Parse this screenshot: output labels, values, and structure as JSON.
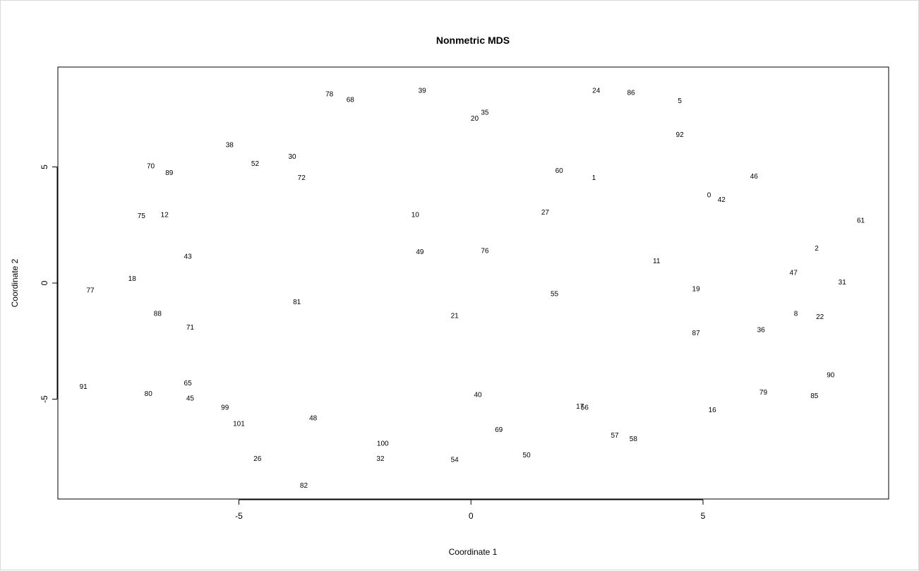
{
  "chart_data": {
    "type": "scatter",
    "title": "Nonmetric MDS",
    "xlabel": "Coordinate 1",
    "ylabel": "Coordinate 2",
    "xlim": [
      -8.9,
      9.0
    ],
    "ylim": [
      -9.3,
      9.3
    ],
    "x_ticks": [
      -5,
      0,
      5
    ],
    "y_ticks": [
      -5,
      0,
      5
    ],
    "x_tick_labels": [
      "-5",
      "0",
      "5"
    ],
    "y_tick_labels": [
      "-5",
      "0",
      "5"
    ],
    "grid": false,
    "points": [
      {
        "label": "0",
        "x": 5.13,
        "y": 3.8
      },
      {
        "label": "1",
        "x": 2.65,
        "y": 4.55
      },
      {
        "label": "2",
        "x": 7.45,
        "y": 1.5
      },
      {
        "label": "5",
        "x": 4.5,
        "y": 7.85
      },
      {
        "label": "8",
        "x": 7.0,
        "y": -1.3
      },
      {
        "label": "10",
        "x": -1.2,
        "y": 2.95
      },
      {
        "label": "11",
        "x": 4.0,
        "y": 0.95
      },
      {
        "label": "12",
        "x": -6.6,
        "y": 2.95
      },
      {
        "label": "16",
        "x": 5.2,
        "y": -5.45
      },
      {
        "label": "17",
        "x": 2.35,
        "y": -5.3
      },
      {
        "label": "18",
        "x": -7.3,
        "y": 0.2
      },
      {
        "label": "19",
        "x": 4.85,
        "y": -0.25
      },
      {
        "label": "20",
        "x": 0.08,
        "y": 7.1
      },
      {
        "label": "21",
        "x": -0.35,
        "y": -1.4
      },
      {
        "label": "22",
        "x": 7.52,
        "y": -1.45
      },
      {
        "label": "24",
        "x": 2.7,
        "y": 8.3
      },
      {
        "label": "26",
        "x": -4.6,
        "y": -7.55
      },
      {
        "label": "27",
        "x": 1.6,
        "y": 3.05
      },
      {
        "label": "30",
        "x": -3.85,
        "y": 5.45
      },
      {
        "label": "31",
        "x": 8.0,
        "y": 0.05
      },
      {
        "label": "32",
        "x": -1.95,
        "y": -7.55
      },
      {
        "label": "35",
        "x": 0.3,
        "y": 7.35
      },
      {
        "label": "36",
        "x": 6.25,
        "y": -2.0
      },
      {
        "label": "38",
        "x": -5.2,
        "y": 5.95
      },
      {
        "label": "39",
        "x": -1.05,
        "y": 8.3
      },
      {
        "label": "40",
        "x": 0.15,
        "y": -4.8
      },
      {
        "label": "42",
        "x": 5.4,
        "y": 3.6
      },
      {
        "label": "43",
        "x": -6.1,
        "y": 1.15
      },
      {
        "label": "45",
        "x": -6.05,
        "y": -4.95
      },
      {
        "label": "46",
        "x": 6.1,
        "y": 4.6
      },
      {
        "label": "47",
        "x": 6.95,
        "y": 0.45
      },
      {
        "label": "48",
        "x": -3.4,
        "y": -5.8
      },
      {
        "label": "49",
        "x": -1.1,
        "y": 1.35
      },
      {
        "label": "50",
        "x": 1.2,
        "y": -7.4
      },
      {
        "label": "52",
        "x": -4.65,
        "y": 5.15
      },
      {
        "label": "54",
        "x": -0.35,
        "y": -7.6
      },
      {
        "label": "55",
        "x": 1.8,
        "y": -0.45
      },
      {
        "label": "56",
        "x": 2.45,
        "y": -5.35
      },
      {
        "label": "57",
        "x": 3.1,
        "y": -6.55
      },
      {
        "label": "58",
        "x": 3.5,
        "y": -6.7
      },
      {
        "label": "60",
        "x": 1.9,
        "y": 4.85
      },
      {
        "label": "61",
        "x": 8.4,
        "y": 2.7
      },
      {
        "label": "65",
        "x": -6.1,
        "y": -4.3
      },
      {
        "label": "68",
        "x": -2.6,
        "y": 7.9
      },
      {
        "label": "69",
        "x": 0.6,
        "y": -6.3
      },
      {
        "label": "70",
        "x": -6.9,
        "y": 5.05
      },
      {
        "label": "71",
        "x": -6.05,
        "y": -1.9
      },
      {
        "label": "72",
        "x": -3.65,
        "y": 4.55
      },
      {
        "label": "75",
        "x": -7.1,
        "y": 2.9
      },
      {
        "label": "76",
        "x": 0.3,
        "y": 1.4
      },
      {
        "label": "77",
        "x": -8.2,
        "y": -0.3
      },
      {
        "label": "78",
        "x": -3.05,
        "y": 8.15
      },
      {
        "label": "79",
        "x": 6.3,
        "y": -4.7
      },
      {
        "label": "80",
        "x": -6.95,
        "y": -4.75
      },
      {
        "label": "81",
        "x": -3.75,
        "y": -0.8
      },
      {
        "label": "82",
        "x": -3.6,
        "y": -8.7
      },
      {
        "label": "85",
        "x": 7.4,
        "y": -4.85
      },
      {
        "label": "86",
        "x": 3.45,
        "y": 8.2
      },
      {
        "label": "87",
        "x": 4.85,
        "y": -2.15
      },
      {
        "label": "88",
        "x": -6.75,
        "y": -1.3
      },
      {
        "label": "89",
        "x": -6.5,
        "y": 4.75
      },
      {
        "label": "90",
        "x": 7.75,
        "y": -3.95
      },
      {
        "label": "91",
        "x": -8.35,
        "y": -4.45
      },
      {
        "label": "92",
        "x": 4.5,
        "y": 6.4
      },
      {
        "label": "99",
        "x": -5.3,
        "y": -5.35
      },
      {
        "label": "100",
        "x": -1.9,
        "y": -6.9
      },
      {
        "label": "101",
        "x": -5.0,
        "y": -6.05
      }
    ]
  }
}
